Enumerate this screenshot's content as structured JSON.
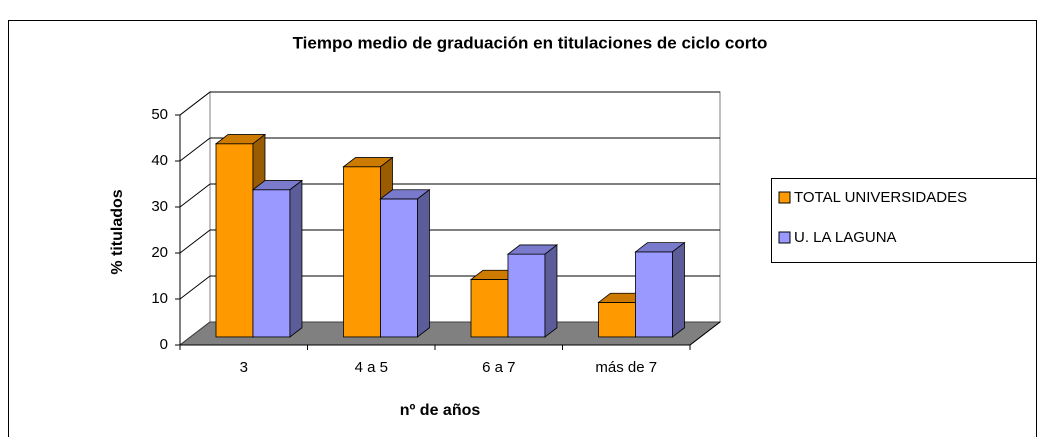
{
  "chart_data": {
    "type": "bar3d",
    "title": "Tiempo medio de graduación en titulaciones de ciclo corto",
    "x_label": "nº de años",
    "y_label": "% titulados",
    "categories": [
      "3",
      "4 a 5",
      "6 a 7",
      "más de 7"
    ],
    "series": [
      {
        "name": "TOTAL UNIVERSIDADES",
        "color": "#FF9900",
        "values": [
          42,
          37,
          12.5,
          7.5
        ]
      },
      {
        "name": "U. LA LAGUNA",
        "color": "#9999FF",
        "values": [
          32,
          30,
          18,
          18.5
        ]
      }
    ],
    "ylim": [
      0,
      50
    ],
    "yticks": [
      0,
      10,
      20,
      30,
      40,
      50
    ],
    "grid": true,
    "legend": "right"
  }
}
